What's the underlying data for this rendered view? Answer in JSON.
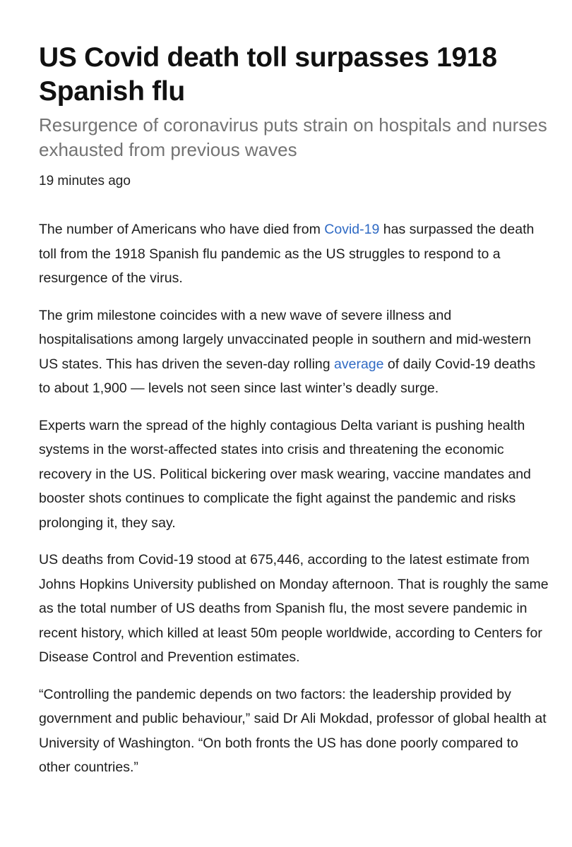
{
  "article": {
    "headline": "US Covid death toll surpasses 1918 Spanish flu",
    "standfirst": "Resurgence of coronavirus puts strain on hospitals and nurses exhausted from previous waves",
    "timestamp": "19 minutes ago",
    "paragraphs": [
      {
        "before": "The number of Americans who have died from ",
        "link": "Covid-19",
        "after": " has surpassed the death toll from the 1918 Spanish flu pandemic as the US struggles to respond to a resurgence of the virus."
      },
      {
        "before": "The grim milestone coincides with a new wave of severe illness and hospitalisations among largely unvaccinated people in southern and mid-western US states. This has driven the seven-day rolling ",
        "link": "average",
        "after": " of daily Covid-19 deaths to about 1,900 — levels not seen since last winter’s deadly surge."
      },
      {
        "text": "Experts warn the spread of the highly contagious Delta variant is pushing health systems in the worst-affected states into crisis and threatening the economic recovery in the US. Political bickering over mask wearing, vaccine mandates and booster shots continues to complicate the fight against the pandemic and risks prolonging it, they say."
      },
      {
        "text": "US deaths from Covid-19 stood at 675,446, according to the latest estimate from Johns Hopkins University published on Monday afternoon. That is roughly the same as the total number of US deaths from Spanish flu, the most severe pandemic in recent history, which killed at least 50m people worldwide, according to Centers for Disease Control and Prevention estimates."
      },
      {
        "text": "“Controlling the pandemic depends on two factors: the leadership provided by government and public behaviour,” said Dr Ali Mokdad, professor of global health at University of Washington. “On both fronts the US has done poorly compared to other countries.”"
      }
    ]
  },
  "colors": {
    "link": "#2f6ac4",
    "standfirst": "#737373",
    "text": "#1c1c1c"
  }
}
